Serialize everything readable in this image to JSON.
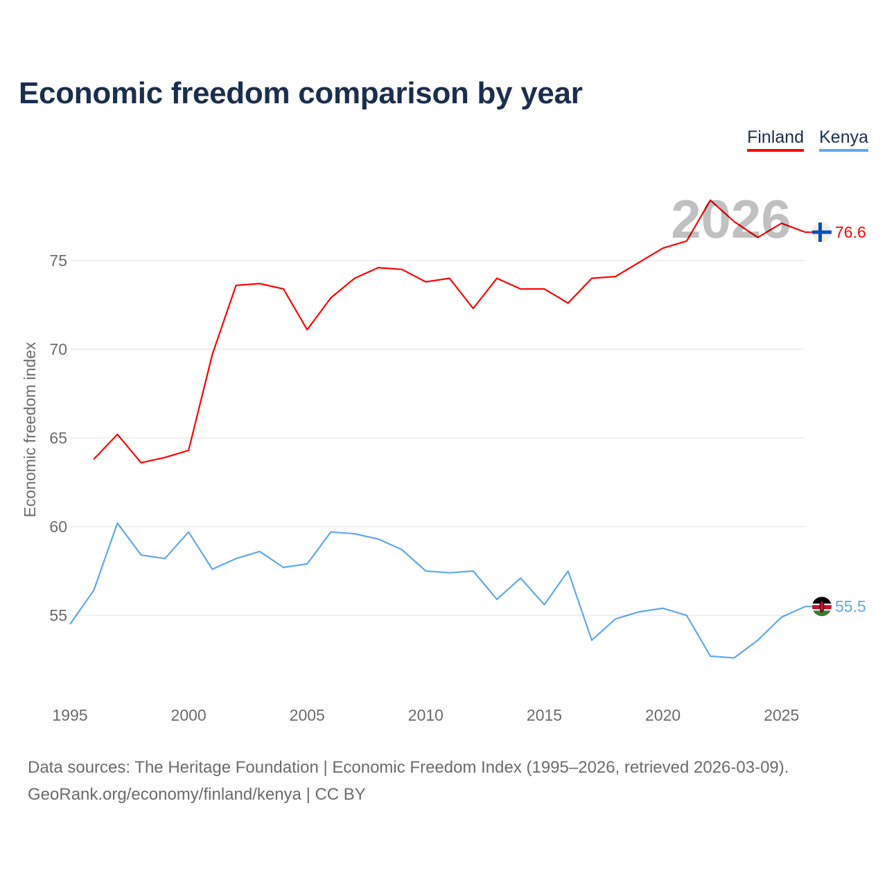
{
  "chart_data": {
    "type": "line",
    "title": "Economic freedom comparison by year",
    "xlabel": "",
    "ylabel": "Economic freedom index",
    "xlim": [
      1995,
      2026
    ],
    "ylim": [
      50.5,
      80.5
    ],
    "x_ticks": [
      1995,
      2000,
      2005,
      2010,
      2015,
      2020,
      2025
    ],
    "y_ticks": [
      55,
      60,
      65,
      70,
      75
    ],
    "grid": true,
    "legend_position": "top-right",
    "watermark_year": "2026",
    "series": [
      {
        "name": "Finland",
        "color": "#ff0000",
        "end_label": "76.6",
        "flag": "finland-flag",
        "x": [
          1996,
          1997,
          1998,
          1999,
          2000,
          2001,
          2002,
          2003,
          2004,
          2005,
          2006,
          2007,
          2008,
          2009,
          2010,
          2011,
          2012,
          2013,
          2014,
          2015,
          2016,
          2017,
          2018,
          2019,
          2020,
          2021,
          2022,
          2023,
          2024,
          2025,
          2026
        ],
        "values": [
          63.8,
          65.2,
          63.6,
          63.9,
          64.3,
          69.7,
          73.6,
          73.7,
          73.4,
          71.1,
          72.9,
          74.0,
          74.6,
          74.5,
          73.8,
          74.0,
          72.3,
          74.0,
          73.4,
          73.4,
          72.6,
          74.0,
          74.1,
          74.9,
          75.7,
          76.1,
          78.4,
          77.2,
          76.3,
          77.1,
          76.6
        ]
      },
      {
        "name": "Kenya",
        "color": "#5fa8ee",
        "end_label": "55.5",
        "flag": "kenya-flag",
        "x": [
          1995,
          1996,
          1997,
          1998,
          1999,
          2000,
          2001,
          2002,
          2003,
          2004,
          2005,
          2006,
          2007,
          2008,
          2009,
          2010,
          2011,
          2012,
          2013,
          2014,
          2015,
          2016,
          2017,
          2018,
          2019,
          2020,
          2021,
          2022,
          2023,
          2024,
          2025,
          2026
        ],
        "values": [
          54.5,
          56.4,
          60.2,
          58.4,
          58.2,
          59.7,
          57.6,
          58.2,
          58.6,
          57.7,
          57.9,
          59.7,
          59.6,
          59.3,
          58.7,
          57.5,
          57.4,
          57.5,
          55.9,
          57.1,
          55.6,
          57.5,
          53.6,
          54.8,
          55.2,
          55.4,
          55.0,
          52.7,
          52.6,
          53.6,
          54.9,
          55.5
        ]
      }
    ]
  },
  "source_line1": "Data sources: The Heritage Foundation | Economic Freedom Index (1995–2026, retrieved 2026-03-09).",
  "source_line2": "GeoRank.org/economy/finland/kenya | CC BY"
}
